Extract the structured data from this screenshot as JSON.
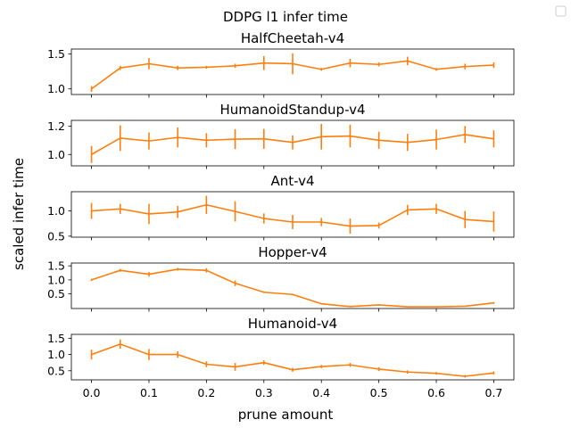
{
  "figure": {
    "title": "DDPG l1 infer time",
    "xlabel": "prune amount",
    "ylabel": "scaled infer time"
  },
  "colors": {
    "series": "#ff7f0e",
    "errorbar": "#ff7f0e",
    "axes": "#000000"
  },
  "chart_data": [
    {
      "type": "line",
      "title": "HalfCheetah-v4",
      "x": [
        0.0,
        0.05,
        0.1,
        0.15,
        0.2,
        0.25,
        0.3,
        0.35,
        0.4,
        0.45,
        0.5,
        0.55,
        0.6,
        0.65,
        0.7
      ],
      "y": [
        1.0,
        1.3,
        1.36,
        1.3,
        1.31,
        1.33,
        1.37,
        1.36,
        1.28,
        1.37,
        1.35,
        1.4,
        1.28,
        1.32,
        1.34
      ],
      "yerr": [
        0.04,
        0.03,
        0.08,
        0.03,
        0.02,
        0.03,
        0.1,
        0.15,
        0.02,
        0.06,
        0.03,
        0.06,
        0.02,
        0.04,
        0.04
      ],
      "ylim": [
        0.92,
        1.57
      ],
      "yticks": [
        1.0,
        1.5
      ],
      "ytick_labels": [
        "1.0",
        "1.5"
      ],
      "xlim": [
        -0.035,
        0.735
      ]
    },
    {
      "type": "line",
      "title": "HumanoidStandup-v4",
      "x": [
        0.0,
        0.05,
        0.1,
        0.15,
        0.2,
        0.25,
        0.3,
        0.35,
        0.4,
        0.45,
        0.5,
        0.55,
        0.6,
        0.65,
        0.7
      ],
      "y": [
        1.0,
        1.115,
        1.095,
        1.12,
        1.1,
        1.108,
        1.11,
        1.085,
        1.125,
        1.13,
        1.1,
        1.085,
        1.105,
        1.14,
        1.11
      ],
      "yerr": [
        0.06,
        0.09,
        0.06,
        0.07,
        0.05,
        0.07,
        0.07,
        0.05,
        0.09,
        0.08,
        0.06,
        0.06,
        0.07,
        0.06,
        0.06
      ],
      "ylim": [
        0.92,
        1.24
      ],
      "yticks": [
        1.0,
        1.2
      ],
      "ytick_labels": [
        "1.0",
        "1.2"
      ],
      "xlim": [
        -0.035,
        0.735
      ]
    },
    {
      "type": "line",
      "title": "Ant-v4",
      "x": [
        0.0,
        0.05,
        0.1,
        0.15,
        0.2,
        0.25,
        0.3,
        0.35,
        0.4,
        0.45,
        0.5,
        0.55,
        0.6,
        0.65,
        0.7
      ],
      "y": [
        1.0,
        1.04,
        0.94,
        0.98,
        1.12,
        0.99,
        0.85,
        0.78,
        0.78,
        0.7,
        0.71,
        1.02,
        1.04,
        0.83,
        0.79
      ],
      "yerr": [
        0.16,
        0.1,
        0.2,
        0.12,
        0.18,
        0.2,
        0.1,
        0.14,
        0.08,
        0.15,
        0.06,
        0.1,
        0.1,
        0.17,
        0.2
      ],
      "ylim": [
        0.48,
        1.38
      ],
      "yticks": [
        0.5,
        1.0
      ],
      "ytick_labels": [
        "0.5",
        "1.0"
      ],
      "xlim": [
        -0.035,
        0.735
      ]
    },
    {
      "type": "line",
      "title": "Hopper-v4",
      "x": [
        0.0,
        0.05,
        0.1,
        0.15,
        0.2,
        0.25,
        0.3,
        0.35,
        0.4,
        0.45,
        0.5,
        0.55,
        0.6,
        0.65,
        0.7
      ],
      "y": [
        1.0,
        1.34,
        1.2,
        1.38,
        1.34,
        0.88,
        0.56,
        0.48,
        0.15,
        0.05,
        0.11,
        0.04,
        0.04,
        0.06,
        0.18
      ],
      "yerr": [
        0.04,
        0.05,
        0.08,
        0.05,
        0.08,
        0.1,
        0.03,
        0.03,
        0.02,
        0.02,
        0.02,
        0.01,
        0.01,
        0.02,
        0.03
      ],
      "ylim": [
        -0.02,
        1.6
      ],
      "yticks": [
        0.5,
        1.0,
        1.5
      ],
      "ytick_labels": [
        "0.5",
        "1.0",
        "1.5"
      ],
      "xlim": [
        -0.035,
        0.735
      ]
    },
    {
      "type": "line",
      "title": "Humanoid-v4",
      "x": [
        0.0,
        0.05,
        0.1,
        0.15,
        0.2,
        0.25,
        0.3,
        0.35,
        0.4,
        0.45,
        0.5,
        0.55,
        0.6,
        0.65,
        0.7
      ],
      "y": [
        1.0,
        1.32,
        1.0,
        1.0,
        0.7,
        0.62,
        0.75,
        0.53,
        0.63,
        0.68,
        0.55,
        0.46,
        0.42,
        0.33,
        0.43
      ],
      "yerr": [
        0.15,
        0.14,
        0.17,
        0.1,
        0.09,
        0.12,
        0.07,
        0.06,
        0.05,
        0.06,
        0.06,
        0.05,
        0.04,
        0.04,
        0.05
      ],
      "ylim": [
        0.22,
        1.62
      ],
      "yticks": [
        0.5,
        1.0,
        1.5
      ],
      "ytick_labels": [
        "0.5",
        "1.0",
        "1.5"
      ],
      "xlim": [
        -0.035,
        0.735
      ]
    }
  ],
  "x_axis": {
    "ticks": [
      0.0,
      0.1,
      0.2,
      0.3,
      0.4,
      0.5,
      0.6,
      0.7
    ],
    "tick_labels": [
      "0.0",
      "0.1",
      "0.2",
      "0.3",
      "0.4",
      "0.5",
      "0.6",
      "0.7"
    ]
  },
  "legend": {
    "placement": "top-right",
    "entries": []
  }
}
